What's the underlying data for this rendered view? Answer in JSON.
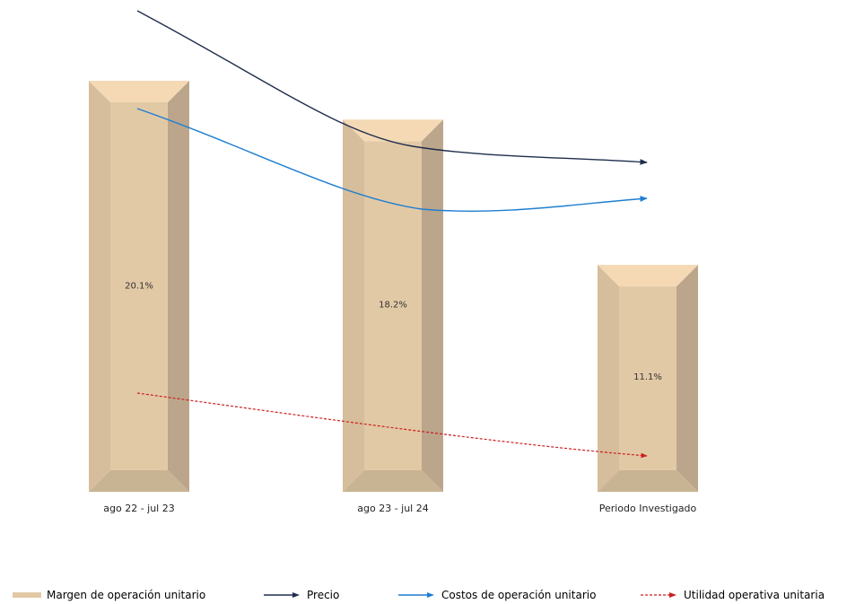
{
  "chart_data": {
    "type": "bar",
    "categories": [
      "ago 22 - jul 23",
      "ago 23 - jul 24",
      "Periodo Investigado"
    ],
    "series": [
      {
        "name": "Margen de operación unitario",
        "type": "bar",
        "values": [
          20.1,
          18.2,
          11.1
        ],
        "labels": [
          "20.1%",
          "18.2%",
          "11.1%"
        ]
      },
      {
        "name": "Precio",
        "type": "line",
        "trend": "decreasing"
      },
      {
        "name": "Costos de operación unitario",
        "type": "line",
        "trend": "decreasing"
      },
      {
        "name": "Utilidad operativa unitaria",
        "type": "line",
        "trend": "decreasing",
        "style": "dashed"
      }
    ],
    "title": "",
    "xlabel": "",
    "ylabel": "",
    "ylim": [
      0,
      20.1
    ],
    "grid": false,
    "legend_position": "bottom",
    "colors": {
      "bar_front": "#e2c9a6",
      "bar_top": "#f5d9b5",
      "bar_side_left": "#d6bd9b",
      "bar_side_right": "#bba68b",
      "bar_bottom": "#c8b393",
      "precio": "#1f2d4d",
      "costos": "#1f7fd1",
      "utilidad": "#cc1f1f"
    }
  }
}
